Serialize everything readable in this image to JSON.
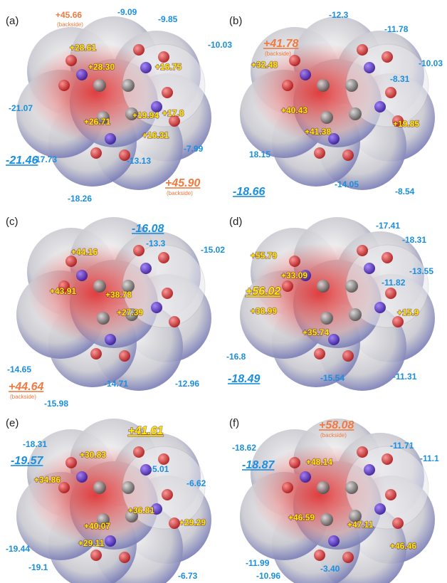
{
  "panels": [
    {
      "label": "(a)",
      "annotations": [
        {
          "text": "+45.66",
          "color": "#f07a40",
          "note": "(backside)"
        },
        {
          "text": "-9.09",
          "color": "#1a8fe0"
        },
        {
          "text": "-9.85",
          "color": "#1a8fe0"
        },
        {
          "text": "-10.03",
          "color": "#1a8fe0"
        },
        {
          "text": "+28.61",
          "color": "#ffea00"
        },
        {
          "text": "+28.30",
          "color": "#ffea00"
        },
        {
          "text": "+16.75",
          "color": "#ffea00"
        },
        {
          "text": "+17.8",
          "color": "#ffea00"
        },
        {
          "text": "+19.94",
          "color": "#ffea00"
        },
        {
          "text": "+26.71",
          "color": "#ffea00"
        },
        {
          "text": "+16.31",
          "color": "#ffea00"
        },
        {
          "text": "-21.07",
          "color": "#1a8fe0"
        },
        {
          "text": "-21.46",
          "color": "#1a8fe0",
          "emphasis": true
        },
        {
          "text": "-7.99",
          "color": "#1a8fe0"
        },
        {
          "text": "-17.73",
          "color": "#1a8fe0"
        },
        {
          "text": "-13.13",
          "color": "#1a8fe0"
        },
        {
          "text": "+45.90",
          "color": "#f07a40",
          "emphasis": true,
          "note": "(backside)"
        },
        {
          "text": "-18.26",
          "color": "#1a8fe0"
        }
      ]
    },
    {
      "label": "(b)",
      "annotations": [
        {
          "text": "+41.78",
          "color": "#f07a40",
          "emphasis": true,
          "note": "(backside)"
        },
        {
          "text": "-12.3",
          "color": "#1a8fe0"
        },
        {
          "text": "-11.78",
          "color": "#1a8fe0"
        },
        {
          "text": "-10.03",
          "color": "#1a8fe0"
        },
        {
          "text": "+32.48",
          "color": "#ffea00"
        },
        {
          "text": "-8.31",
          "color": "#1a8fe0"
        },
        {
          "text": "+40.43",
          "color": "#ffea00"
        },
        {
          "text": "+19.85",
          "color": "#ffea00"
        },
        {
          "text": "+41.38",
          "color": "#ffea00"
        },
        {
          "text": "18.15",
          "color": "#1a8fe0"
        },
        {
          "text": "-18.66",
          "color": "#1a8fe0",
          "emphasis": true
        },
        {
          "text": "-14.05",
          "color": "#1a8fe0"
        },
        {
          "text": "-8.54",
          "color": "#1a8fe0"
        }
      ]
    },
    {
      "label": "(c)",
      "annotations": [
        {
          "text": "-16.08",
          "color": "#1a8fe0",
          "emphasis": true
        },
        {
          "text": "-13.3",
          "color": "#1a8fe0"
        },
        {
          "text": "-15.02",
          "color": "#1a8fe0"
        },
        {
          "text": "+44.16",
          "color": "#ffea00"
        },
        {
          "text": "+43.91",
          "color": "#ffea00"
        },
        {
          "text": "+38.78",
          "color": "#ffea00"
        },
        {
          "text": "+27.39",
          "color": "#ffea00"
        },
        {
          "text": "-14.65",
          "color": "#1a8fe0"
        },
        {
          "text": "+44.64",
          "color": "#f07a40",
          "emphasis": true,
          "note": "(backside)"
        },
        {
          "text": "-15.98",
          "color": "#1a8fe0"
        },
        {
          "text": "-14.71",
          "color": "#1a8fe0"
        },
        {
          "text": "-12.96",
          "color": "#1a8fe0"
        }
      ]
    },
    {
      "label": "(d)",
      "annotations": [
        {
          "text": "-17.41",
          "color": "#1a8fe0"
        },
        {
          "text": "-18.31",
          "color": "#1a8fe0"
        },
        {
          "text": "+55.79",
          "color": "#ffea00"
        },
        {
          "text": "-13.55",
          "color": "#1a8fe0"
        },
        {
          "text": "+33.09",
          "color": "#ffea00"
        },
        {
          "text": "-11.82",
          "color": "#1a8fe0"
        },
        {
          "text": "+56.02",
          "color": "#ffea00",
          "emphasis": true
        },
        {
          "text": "+38.99",
          "color": "#ffea00"
        },
        {
          "text": "+15.9",
          "color": "#ffea00"
        },
        {
          "text": "+35.74",
          "color": "#ffea00"
        },
        {
          "text": "-16.8",
          "color": "#1a8fe0"
        },
        {
          "text": "-15.54",
          "color": "#1a8fe0"
        },
        {
          "text": "-18.49",
          "color": "#1a8fe0",
          "emphasis": true
        },
        {
          "text": "-11.31",
          "color": "#1a8fe0"
        }
      ]
    },
    {
      "label": "(e)",
      "annotations": [
        {
          "text": "+41.61",
          "color": "#ffea00",
          "emphasis": true
        },
        {
          "text": "-18.31",
          "color": "#1a8fe0"
        },
        {
          "text": "-19.57",
          "color": "#1a8fe0",
          "emphasis": true
        },
        {
          "text": "+30.83",
          "color": "#ffea00"
        },
        {
          "text": "-5.01",
          "color": "#1a8fe0"
        },
        {
          "text": "-6.62",
          "color": "#1a8fe0"
        },
        {
          "text": "+34.86",
          "color": "#ffea00"
        },
        {
          "text": "+40.07",
          "color": "#ffea00"
        },
        {
          "text": "+36.81",
          "color": "#ffea00"
        },
        {
          "text": "+29.29",
          "color": "#ffea00"
        },
        {
          "text": "+29.11",
          "color": "#ffea00"
        },
        {
          "text": "-19.44",
          "color": "#1a8fe0"
        },
        {
          "text": "-19.1",
          "color": "#1a8fe0"
        },
        {
          "text": "-6.73",
          "color": "#1a8fe0"
        }
      ]
    },
    {
      "label": "(f)",
      "annotations": [
        {
          "text": "+58.08",
          "color": "#f07a40",
          "emphasis": true,
          "note": "(backside)"
        },
        {
          "text": "-18.62",
          "color": "#1a8fe0"
        },
        {
          "text": "-18.87",
          "color": "#1a8fe0",
          "emphasis": true
        },
        {
          "text": "-11.71",
          "color": "#1a8fe0"
        },
        {
          "text": "-11.1",
          "color": "#1a8fe0"
        },
        {
          "text": "+48.14",
          "color": "#ffea00"
        },
        {
          "text": "+46.59",
          "color": "#ffea00"
        },
        {
          "text": "+47.11",
          "color": "#ffea00"
        },
        {
          "text": "+46.46",
          "color": "#ffea00"
        },
        {
          "text": "-11.99",
          "color": "#1a8fe0"
        },
        {
          "text": "-10.96",
          "color": "#1a8fe0"
        },
        {
          "text": "-3.40",
          "color": "#1a8fe0"
        }
      ]
    }
  ]
}
